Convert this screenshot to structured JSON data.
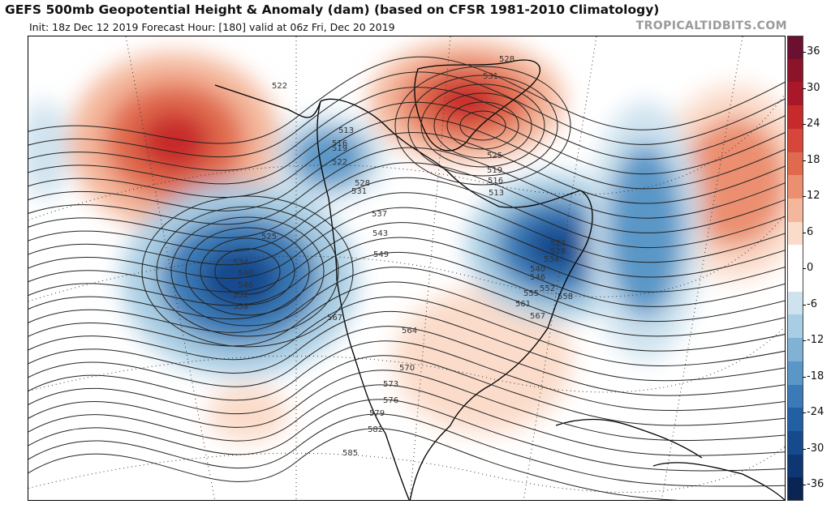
{
  "header": {
    "title": "GEFS 500mb Geopotential Height & Anomaly (dam) (based on CFSR 1981-2010 Climatology)",
    "subtitle": "Init: 18z Dec 12 2019   Forecast Hour: [180]   valid at 06z Fri, Dec 20 2019",
    "credit": "TROPICALTIDBITS.COM"
  },
  "colorbar": {
    "labels": [
      "36",
      "30",
      "24",
      "18",
      "12",
      "6",
      "0",
      "-6",
      "-12",
      "-18",
      "-24",
      "-30",
      "-36"
    ],
    "colors": [
      "#6b1030",
      "#8c1428",
      "#a8182a",
      "#c72a2a",
      "#d7463a",
      "#e06a4e",
      "#eb8f70",
      "#f4b79b",
      "#fbdcca",
      "#ffffff",
      "#ffffff",
      "#cfe3ef",
      "#a9cde3",
      "#80b2d6",
      "#5a97c7",
      "#3b7ab6",
      "#2360a3",
      "#154a8d",
      "#0d3672",
      "#0a2453"
    ]
  },
  "contour_labels": [
    "522",
    "528",
    "531",
    "525",
    "519",
    "516",
    "513",
    "513",
    "516",
    "519",
    "522",
    "528",
    "531",
    "537",
    "543",
    "549",
    "525",
    "534",
    "540",
    "546",
    "552",
    "558",
    "522",
    "528",
    "534",
    "540",
    "546",
    "552",
    "555",
    "558",
    "561",
    "567",
    "567",
    "564",
    "570",
    "573",
    "576",
    "579",
    "582",
    "585"
  ],
  "anomalies": [
    {
      "sign": "positive",
      "strength": "strong",
      "name": "gulf-of-alaska-ridge"
    },
    {
      "sign": "positive",
      "strength": "strong",
      "name": "greenland-ridge"
    },
    {
      "sign": "positive",
      "strength": "moderate",
      "name": "atlantic-ridge"
    },
    {
      "sign": "positive",
      "strength": "weak",
      "name": "central-us-ridge"
    },
    {
      "sign": "positive",
      "strength": "weak",
      "name": "eastern-pacific-ridge"
    },
    {
      "sign": "negative",
      "strength": "strong",
      "name": "northeast-pacific-trough"
    },
    {
      "sign": "negative",
      "strength": "strong",
      "name": "eastern-canada-trough"
    },
    {
      "sign": "negative",
      "strength": "moderate",
      "name": "north-atlantic-trough"
    },
    {
      "sign": "negative",
      "strength": "moderate",
      "name": "nunavut-trough"
    },
    {
      "sign": "negative",
      "strength": "weak",
      "name": "dateline-trough"
    }
  ]
}
